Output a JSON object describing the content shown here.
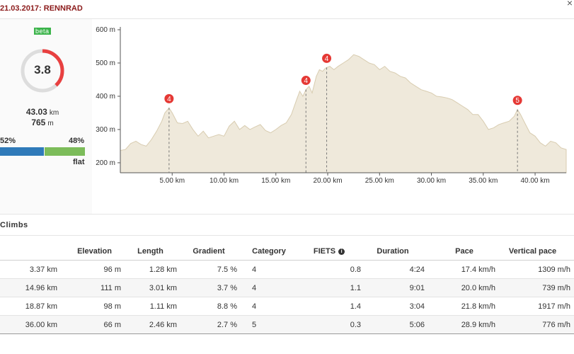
{
  "header": {
    "title": "21.03.2017: RENNRAD"
  },
  "summary": {
    "badge": "beta",
    "score": "3.8",
    "score_fraction": 0.38,
    "distance_value": "43.03",
    "distance_unit": "km",
    "ascent_value": "765",
    "ascent_unit": "m",
    "pct_left": "52%",
    "pct_right": "48%",
    "flat_label": "flat",
    "colors": {
      "ring": "#e84040",
      "bar_left": "#2f7ab9",
      "bar_right": "#7cbc5a"
    }
  },
  "chart_data": {
    "type": "area",
    "x": [
      0,
      0.5,
      1,
      1.5,
      2,
      2.5,
      3,
      3.5,
      4,
      4.3,
      4.7,
      5,
      5.5,
      6,
      6.5,
      7,
      7.5,
      8,
      8.5,
      9,
      9.5,
      10,
      10.5,
      11,
      11.5,
      12,
      12.5,
      13,
      13.5,
      14,
      14.5,
      15,
      15.5,
      16,
      16.5,
      17,
      17.3,
      17.6,
      17.9,
      18.2,
      18.5,
      18.9,
      19.2,
      19.5,
      19.8,
      20.2,
      20.6,
      21,
      21.5,
      22,
      22.5,
      23,
      23.5,
      24,
      24.5,
      25,
      25.5,
      26,
      26.5,
      27,
      27.5,
      28,
      28.5,
      29,
      29.5,
      30,
      30.5,
      31,
      31.5,
      32,
      32.5,
      33,
      33.5,
      34,
      34.5,
      35,
      35.5,
      36,
      36.5,
      37,
      37.5,
      38,
      38.3,
      38.6,
      39,
      39.5,
      40,
      40.5,
      41,
      41.5,
      42,
      42.5,
      43
    ],
    "y": [
      237,
      240,
      258,
      265,
      255,
      250,
      270,
      295,
      325,
      350,
      365,
      350,
      320,
      318,
      325,
      300,
      280,
      295,
      275,
      280,
      285,
      280,
      310,
      325,
      300,
      312,
      300,
      308,
      315,
      297,
      290,
      300,
      312,
      320,
      345,
      390,
      415,
      400,
      420,
      430,
      410,
      460,
      480,
      475,
      485,
      490,
      480,
      490,
      500,
      510,
      525,
      520,
      510,
      500,
      495,
      480,
      490,
      475,
      470,
      460,
      455,
      440,
      430,
      420,
      415,
      410,
      400,
      398,
      395,
      390,
      380,
      370,
      360,
      345,
      345,
      325,
      300,
      305,
      315,
      320,
      325,
      340,
      360,
      345,
      320,
      290,
      280,
      260,
      250,
      265,
      260,
      245,
      240
    ],
    "xlim": [
      0,
      43
    ],
    "ylim": [
      170,
      600
    ],
    "yticks": [
      200,
      300,
      400,
      500,
      600
    ],
    "ytick_labels": [
      "200 m",
      "300 m",
      "400 m",
      "500 m",
      "600 m"
    ],
    "xticks": [
      5,
      10,
      15,
      20,
      25,
      30,
      35,
      40
    ],
    "xtick_labels": [
      "5.00 km",
      "10.00 km",
      "15.00 km",
      "20.00 km",
      "25.00 km",
      "30.00 km",
      "35.00 km",
      "40.00 km"
    ],
    "climb_markers": [
      {
        "x": 4.7,
        "label": "4"
      },
      {
        "x": 17.9,
        "label": "4"
      },
      {
        "x": 19.9,
        "label": "4"
      },
      {
        "x": 38.3,
        "label": "5"
      }
    ],
    "colors": {
      "fill": "#efe9db",
      "stroke": "#d8ccb0",
      "marker": "#e53935",
      "axis": "#555555"
    }
  },
  "climbs": {
    "title": "Climbs",
    "headers": [
      "",
      "Elevation",
      "Length",
      "Gradient",
      "Category",
      "FIETS",
      "Duration",
      "Pace",
      "Vertical pace"
    ],
    "rows": [
      [
        "3.37 km",
        "96 m",
        "1.28 km",
        "7.5 %",
        "4",
        "0.8",
        "4:24",
        "17.4 km/h",
        "1309 m/h"
      ],
      [
        "14.96 km",
        "111 m",
        "3.01 km",
        "3.7 %",
        "4",
        "1.1",
        "9:01",
        "20.0 km/h",
        "739 m/h"
      ],
      [
        "18.87 km",
        "98 m",
        "1.11 km",
        "8.8 %",
        "4",
        "1.4",
        "3:04",
        "21.8 km/h",
        "1917 m/h"
      ],
      [
        "36.00 km",
        "66 m",
        "2.46 km",
        "2.7 %",
        "5",
        "0.3",
        "5:06",
        "28.9 km/h",
        "776 m/h"
      ]
    ]
  }
}
